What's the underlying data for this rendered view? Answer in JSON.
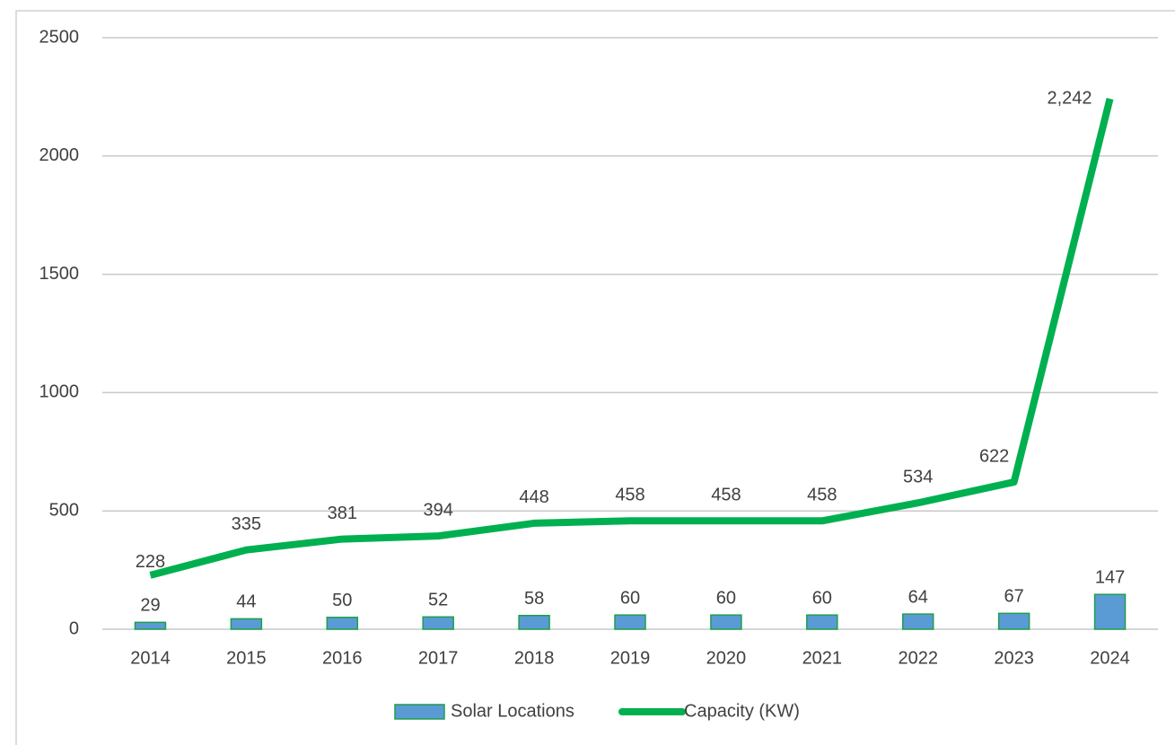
{
  "chart_data": {
    "type": "combo",
    "categories": [
      "2014",
      "2015",
      "2016",
      "2017",
      "2018",
      "2019",
      "2020",
      "2021",
      "2022",
      "2023",
      "2024"
    ],
    "series": [
      {
        "name": "Solar Locations",
        "type": "bar",
        "color": "#5b9bd5",
        "edge_color": "#1e9e4a",
        "values": [
          29,
          44,
          50,
          52,
          58,
          60,
          60,
          60,
          64,
          67,
          147
        ]
      },
      {
        "name": "Capacity (KW)",
        "type": "line",
        "color": "#00b050",
        "values": [
          228,
          335,
          381,
          394,
          448,
          458,
          458,
          458,
          534,
          622,
          2242
        ],
        "value_labels": [
          "228",
          "335",
          "381",
          "394",
          "448",
          "458",
          "458",
          "458",
          "534",
          "622",
          "2,242"
        ]
      }
    ],
    "ylim": [
      0,
      2500
    ],
    "yticks": [
      0,
      500,
      1000,
      1500,
      2000,
      2500
    ],
    "grid": true,
    "legend": "bottom"
  }
}
